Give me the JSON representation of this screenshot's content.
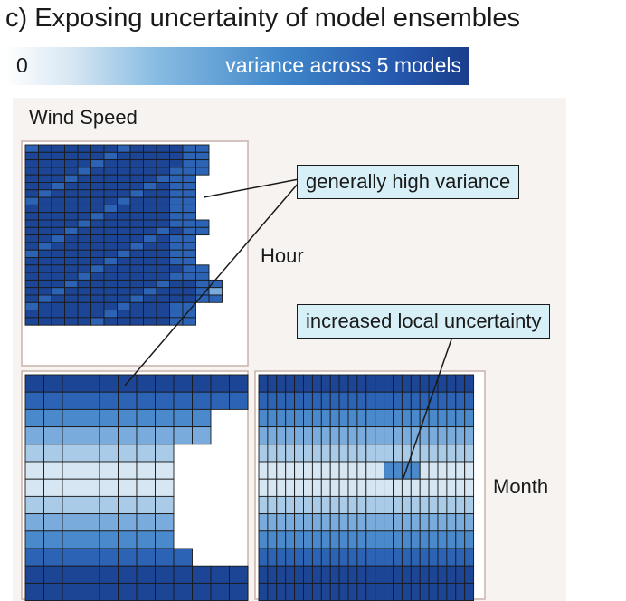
{
  "title": "c) Exposing uncertainty of model ensembles",
  "legend": {
    "min_label": "0",
    "label": "variance across 5 models",
    "colors": [
      "#ffffff",
      "#d8e7f3",
      "#89bde3",
      "#3f86c9",
      "#2457ad",
      "#1a3e8c"
    ]
  },
  "plot": {
    "variable_label": "Wind Speed",
    "row_label_hour": "Hour",
    "row_label_month": "Month",
    "background": "#f6f3f1",
    "panel_border": "#c9b2ac",
    "cell_border": "#1a1a1a"
  },
  "callouts": {
    "high_variance": "generally high variance",
    "local_uncertainty": "increased local uncertainty"
  }
}
